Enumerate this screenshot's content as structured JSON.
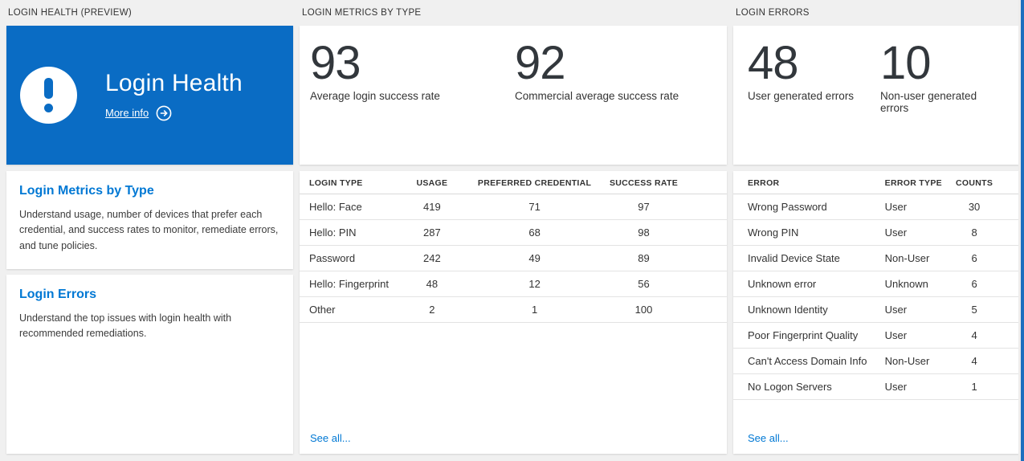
{
  "colors": {
    "tile_blue": "#0a6cc4",
    "link_blue": "#0078d4",
    "window_border_blue": "#1c6fbf",
    "page_background": "#f0f0f0",
    "text_dark": "#333333"
  },
  "left_panel": {
    "header": "LOGIN HEALTH (PREVIEW)",
    "tile": {
      "title": "Login Health",
      "more_info_label": "More info",
      "icon": "exclamation-icon"
    },
    "sections": [
      {
        "title": "Login Metrics by Type",
        "description": "Understand usage, number of devices that prefer each credential, and success rates to monitor, remediate errors, and tune policies."
      },
      {
        "title": "Login Errors",
        "description": "Understand the top issues with login health with recommended remediations."
      }
    ]
  },
  "metrics_panel": {
    "header": "LOGIN METRICS BY TYPE",
    "stats": [
      {
        "value": "93",
        "label": "Average login success rate"
      },
      {
        "value": "92",
        "label": "Commercial average success rate"
      }
    ],
    "table": {
      "columns": [
        "LOGIN TYPE",
        "USAGE",
        "PREFERRED CREDENTIAL",
        "SUCCESS RATE"
      ],
      "rows": [
        [
          "Hello: Face",
          "419",
          "71",
          "97"
        ],
        [
          "Hello: PIN",
          "287",
          "68",
          "98"
        ],
        [
          "Password",
          "242",
          "49",
          "89"
        ],
        [
          "Hello: Fingerprint",
          "48",
          "12",
          "56"
        ],
        [
          "Other",
          "2",
          "1",
          "100"
        ]
      ]
    },
    "see_all_label": "See all..."
  },
  "errors_panel": {
    "header": "LOGIN ERRORS",
    "stats": [
      {
        "value": "48",
        "label": "User generated errors"
      },
      {
        "value": "10",
        "label": "Non-user generated errors"
      }
    ],
    "table": {
      "columns": [
        "ERROR",
        "ERROR TYPE",
        "COUNTS"
      ],
      "rows": [
        [
          "Wrong Password",
          "User",
          "30"
        ],
        [
          "Wrong PIN",
          "User",
          "8"
        ],
        [
          "Invalid Device State",
          "Non-User",
          "6"
        ],
        [
          "Unknown error",
          "Unknown",
          "6"
        ],
        [
          "Unknown Identity",
          "User",
          "5"
        ],
        [
          "Poor Fingerprint Quality",
          "User",
          "4"
        ],
        [
          "Can't Access Domain Info",
          "Non-User",
          "4"
        ],
        [
          "No Logon Servers",
          "User",
          "1"
        ]
      ]
    },
    "see_all_label": "See all..."
  }
}
